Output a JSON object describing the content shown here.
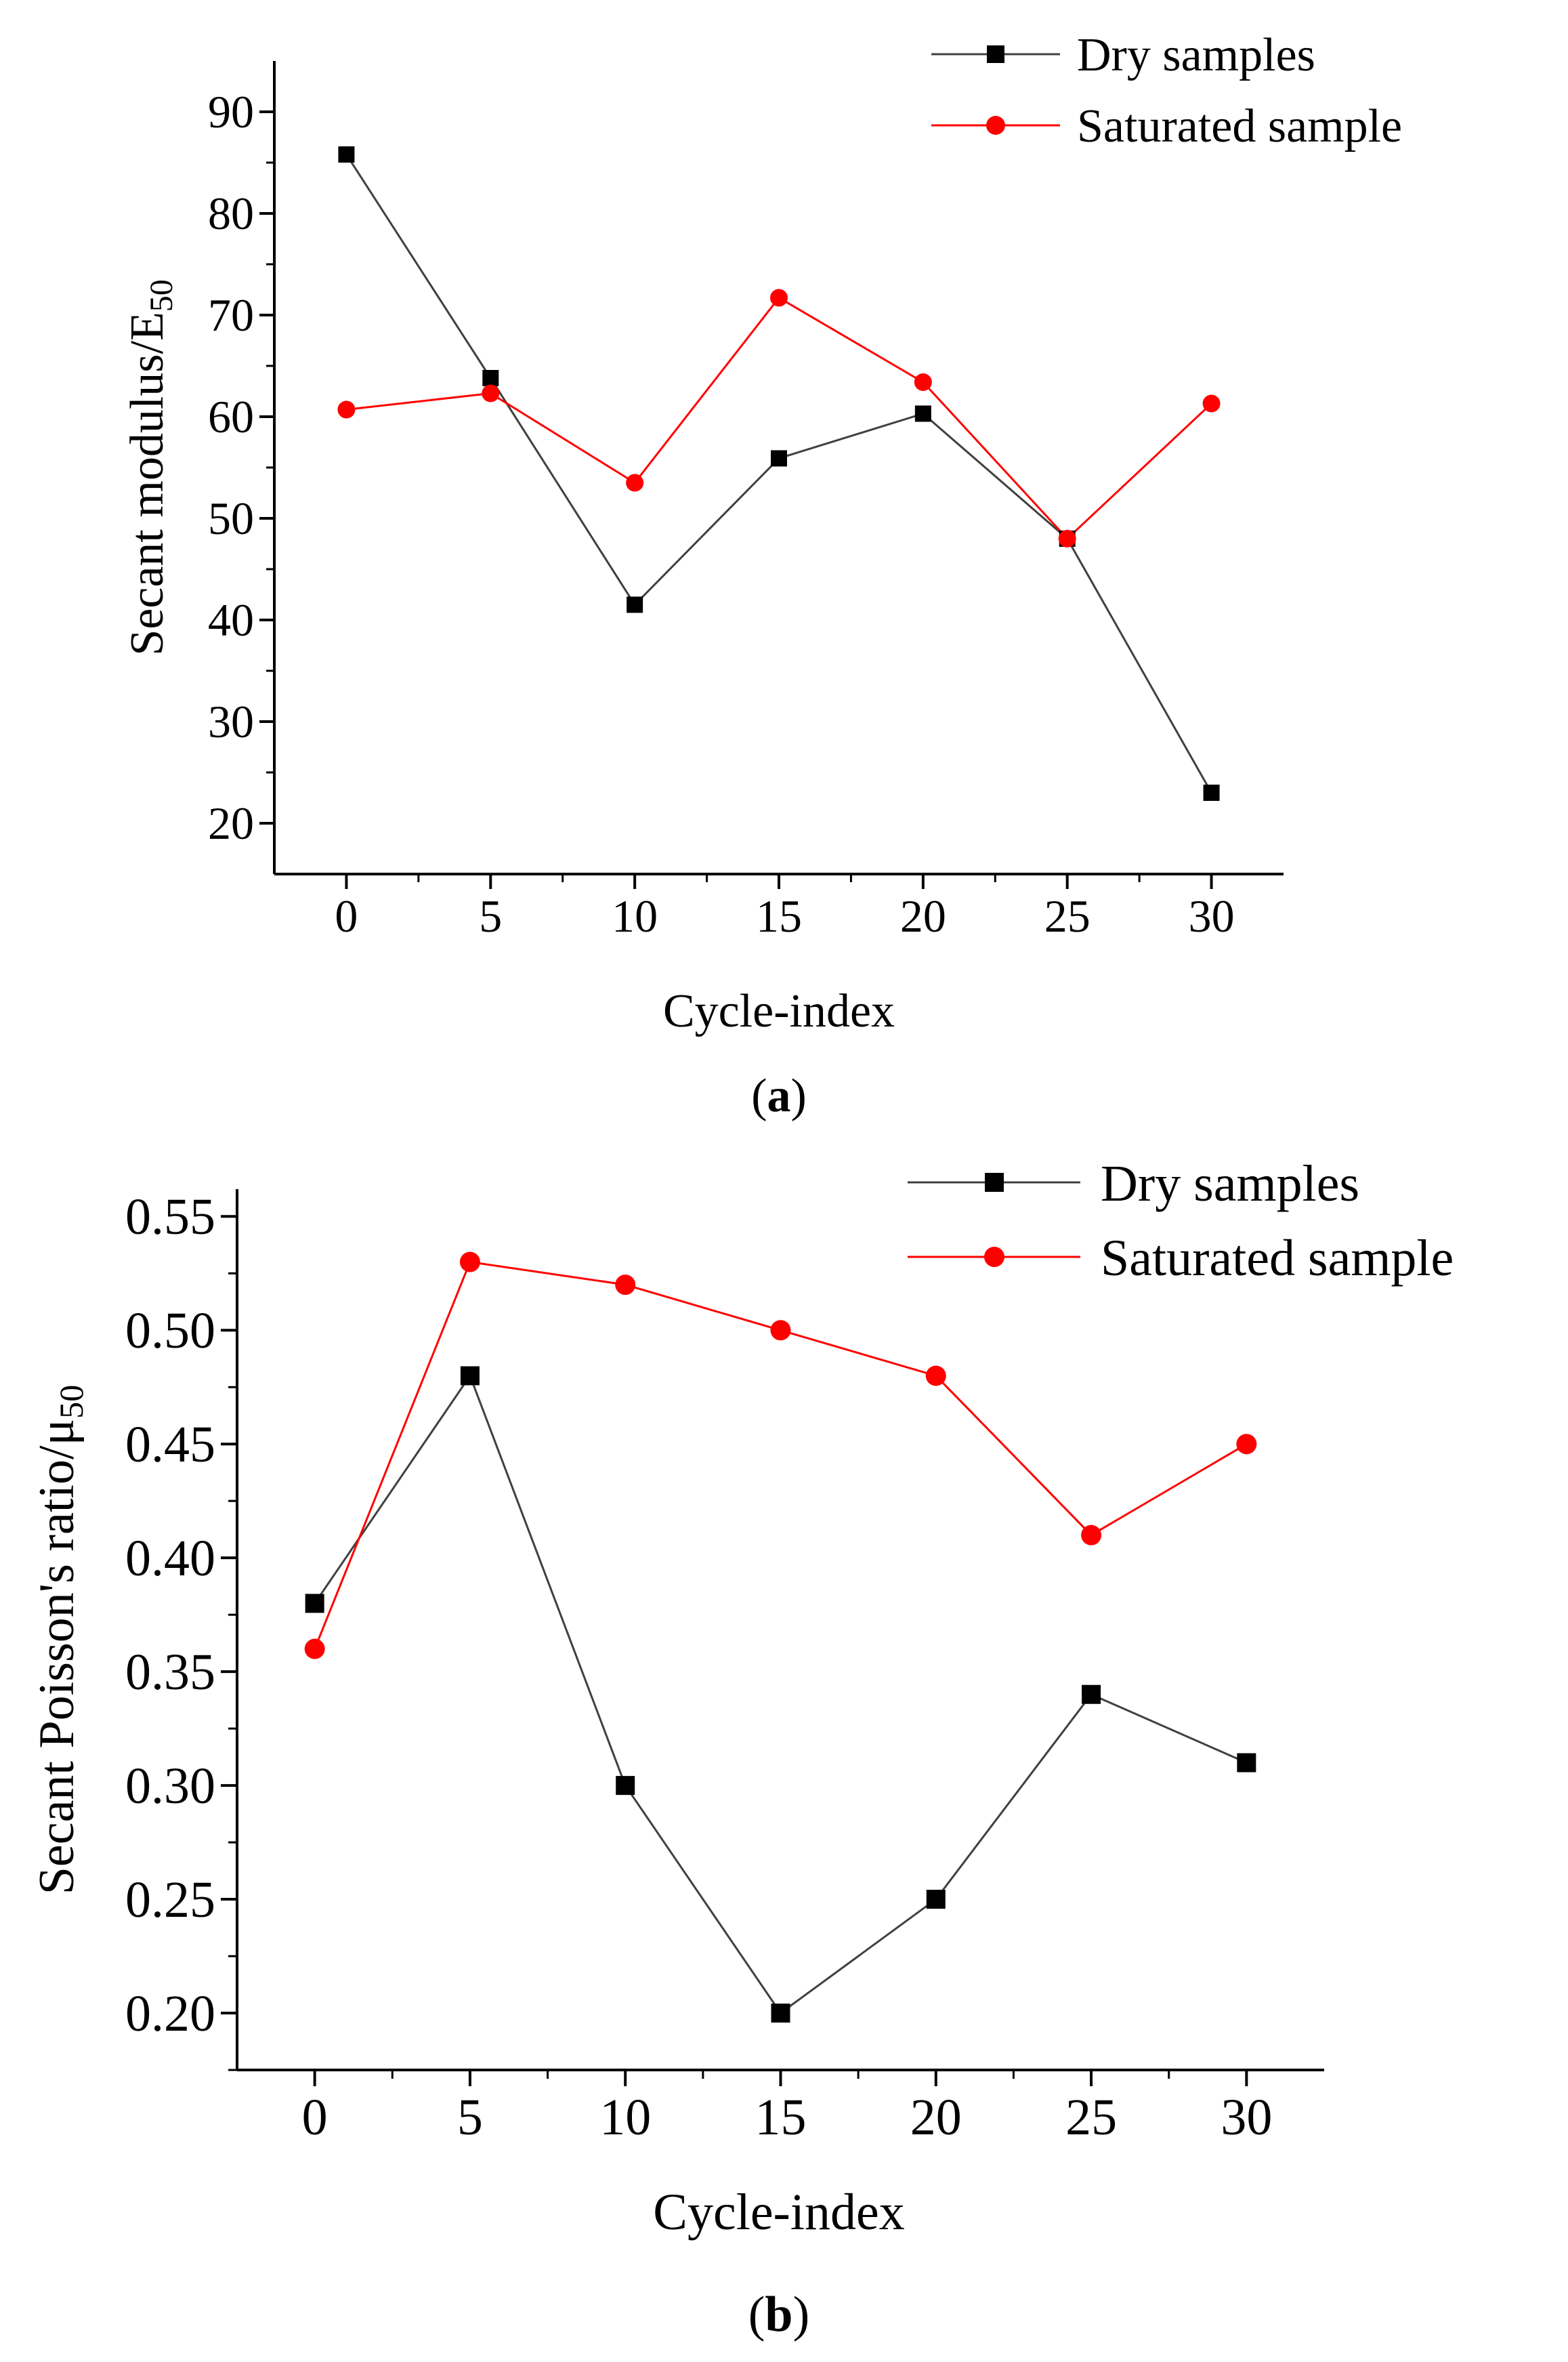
{
  "chart_data": [
    {
      "type": "line",
      "x": [
        0,
        5,
        10,
        15,
        20,
        25,
        30
      ],
      "series": [
        {
          "name": "Dry samples",
          "marker": "square",
          "color": "#000000",
          "line_color": "#404040",
          "values": [
            85.8,
            63.8,
            41.5,
            55.9,
            60.3,
            48.0,
            23.0
          ]
        },
        {
          "name": "Saturated sample",
          "marker": "circle",
          "color": "#ff0000",
          "line_color": "#ff0000",
          "values": [
            60.7,
            62.3,
            53.5,
            71.7,
            63.4,
            48.0,
            61.3
          ]
        }
      ],
      "xlabel": "Cycle-index",
      "ylabel": "Secant modulus/E",
      "ylabel_sub": "50",
      "xlim": [
        -2.5,
        32.5
      ],
      "ylim": [
        15,
        95
      ],
      "xticks": [
        0,
        5,
        10,
        15,
        20,
        25,
        30
      ],
      "yticks": [
        20,
        30,
        40,
        50,
        60,
        70,
        80,
        90
      ],
      "tick_decimals": 0,
      "legend": "top-right",
      "caption_open": "(",
      "caption_letter": "a",
      "caption_close": ")"
    },
    {
      "type": "line",
      "x": [
        0,
        5,
        10,
        15,
        20,
        25,
        30
      ],
      "series": [
        {
          "name": "Dry samples",
          "marker": "square",
          "color": "#000000",
          "line_color": "#404040",
          "values": [
            0.38,
            0.48,
            0.3,
            0.2,
            0.25,
            0.34,
            0.31
          ]
        },
        {
          "name": "Saturated sample",
          "marker": "circle",
          "color": "#ff0000",
          "line_color": "#ff0000",
          "values": [
            0.36,
            0.53,
            0.52,
            0.5,
            0.48,
            0.41,
            0.45
          ]
        }
      ],
      "xlabel": "Cycle-index",
      "ylabel": "Secant Poisson's ratio/μ",
      "ylabel_sub": "50",
      "xlim": [
        -2.5,
        32.5
      ],
      "ylim": [
        0.175,
        0.562
      ],
      "xticks": [
        0,
        5,
        10,
        15,
        20,
        25,
        30
      ],
      "yticks": [
        0.2,
        0.25,
        0.3,
        0.35,
        0.4,
        0.45,
        0.5,
        0.55
      ],
      "tick_decimals": 2,
      "legend": "top-right",
      "caption_open": "(",
      "caption_letter": "b",
      "caption_close": ")"
    }
  ]
}
